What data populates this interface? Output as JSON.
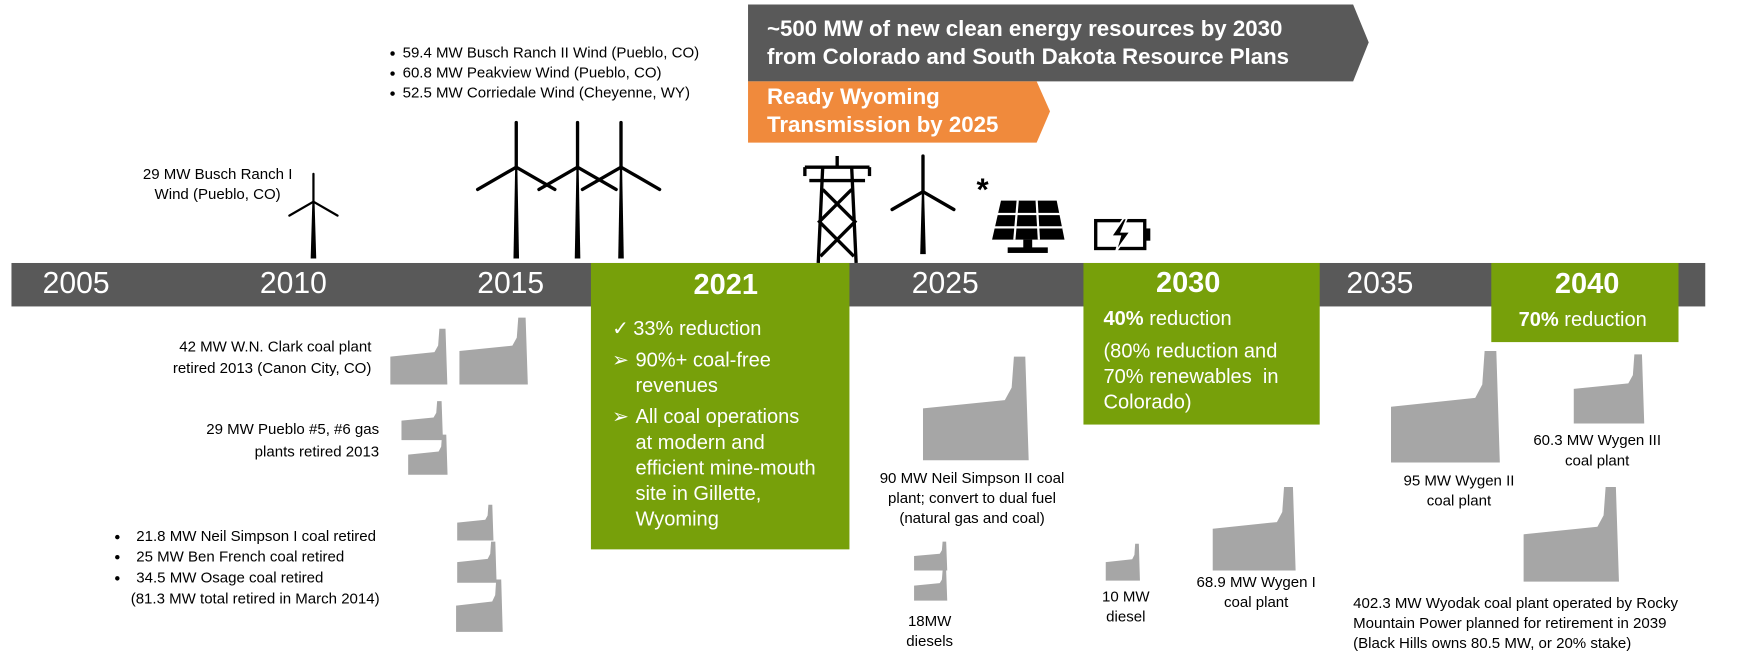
{
  "header_banner": {
    "lines": [
      "~500 MW of new clean energy resources by 2030",
      "from Colorado and South Dakota Resource Plans"
    ]
  },
  "transmission_banner": {
    "lines": [
      "Ready Wyoming",
      "Transmission by 2025"
    ]
  },
  "timeline": {
    "years": [
      "2005",
      "2010",
      "2015",
      "2025",
      "2035"
    ]
  },
  "milestones": [
    {
      "year": "2021",
      "items": [
        {
          "marker": "✓",
          "lines": [
            "33% reduction"
          ]
        },
        {
          "marker": "➢",
          "lines": [
            "90%+ coal-free",
            "revenues"
          ]
        },
        {
          "marker": "➢",
          "lines": [
            "All coal operations",
            "at modern and",
            "efficient mine-mouth",
            "site in Gillette,",
            "Wyoming"
          ]
        }
      ]
    },
    {
      "year": "2030",
      "highlight": "40%",
      "text": " reduction",
      "notes": [
        "(80% reduction and",
        "70% renewables  in",
        "Colorado)"
      ]
    },
    {
      "year": "2040",
      "highlight": "70%",
      "text": " reduction"
    }
  ],
  "wind_additions": {
    "busch_ranch_1": [
      "29 MW Busch Ranch I",
      "Wind (Pueblo, CO)"
    ],
    "projects": [
      "59.4 MW Busch Ranch II Wind (Pueblo, CO)",
      "60.8 MW Peakview Wind (Pueblo, CO)",
      "52.5 MW Corriedale Wind (Cheyenne, WY)"
    ]
  },
  "retirements": {
    "wn_clark": [
      "42 MW W.N. Clark coal plant",
      "retired 2013 (Canon City, CO)"
    ],
    "pueblo": [
      "29 MW Pueblo #5, #6 gas",
      "plants retired 2013"
    ],
    "bullets": [
      "21.8 MW Neil Simpson I coal retired",
      "25 MW Ben French coal retired",
      "34.5 MW Osage coal retired"
    ],
    "total": "(81.3 MW total retired in March 2014)"
  },
  "future_plants": {
    "neil_simpson_2": [
      "90 MW Neil Simpson II coal",
      "plant; convert to dual fuel",
      "(natural gas and coal)"
    ],
    "diesels_18": [
      "18MW",
      "diesels"
    ],
    "diesel_10": [
      "10 MW",
      "diesel"
    ],
    "wygen_1": [
      "68.9 MW Wygen I",
      "coal plant"
    ],
    "wygen_2": [
      "95 MW Wygen II",
      "coal plant"
    ],
    "wygen_3": [
      "60.3 MW Wygen III",
      "coal plant"
    ],
    "wyodak": [
      "402.3 MW Wyodak coal plant operated by Rocky",
      "Mountain Power planned for retirement in 2039",
      "(Black Hills owns 80.5 MW, or 20% stake)"
    ]
  }
}
